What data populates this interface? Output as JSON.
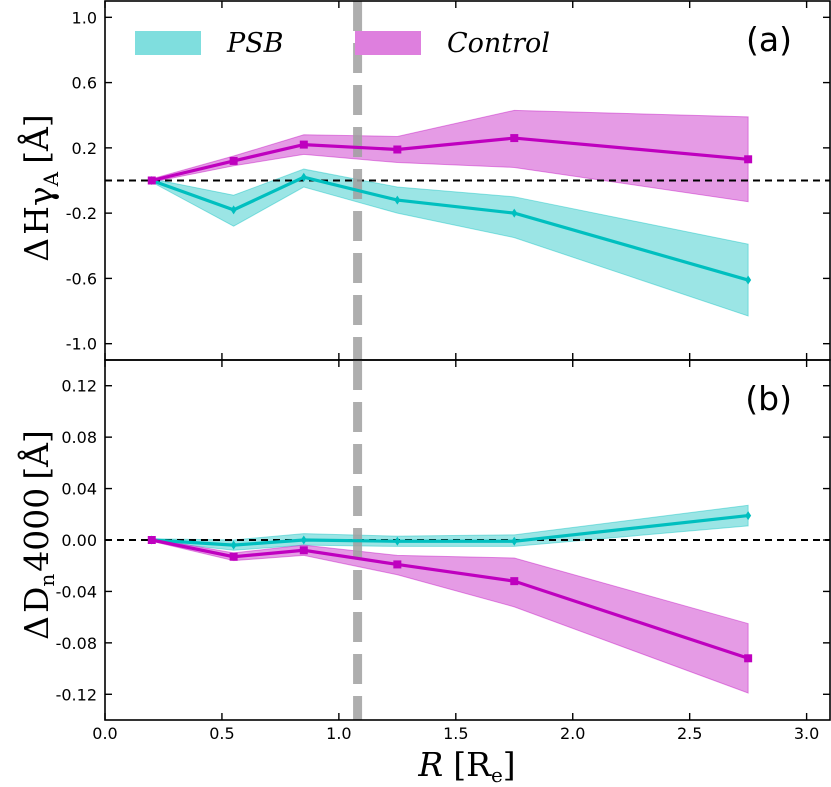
{
  "chart_data": [
    {
      "type": "line",
      "panel": "(a)",
      "ylabel": "ΔHγA [Å]",
      "ylabel_parts": {
        "delta": "Δ",
        "main": "H",
        "greek": "γ",
        "sub": "A",
        "unit": "[Å]"
      },
      "xlim": [
        0.0,
        3.1
      ],
      "ylim": [
        -1.1,
        1.1
      ],
      "yticks": [
        1.0,
        0.6,
        0.2,
        -0.2,
        -0.6,
        -1.0
      ],
      "ytick_labels": [
        "1.0",
        "0.6",
        "0.2",
        "-0.2",
        "-0.6",
        "-1.0"
      ],
      "reference_line_y": 0.0,
      "series": [
        {
          "name": "PSB",
          "color": "#00BFBF",
          "fill_color": "#7FDEDE",
          "marker": "diamond",
          "x": [
            0.2,
            0.55,
            0.85,
            1.25,
            1.75,
            2.75
          ],
          "values": [
            0.0,
            -0.18,
            0.02,
            -0.12,
            -0.2,
            -0.61
          ],
          "lower": [
            -0.01,
            -0.28,
            -0.04,
            -0.2,
            -0.35,
            -0.83
          ],
          "upper": [
            0.01,
            -0.09,
            0.07,
            -0.04,
            -0.1,
            -0.39
          ]
        },
        {
          "name": "Control",
          "color": "#BF00BF",
          "fill_color": "#DE7FDE",
          "marker": "square",
          "x": [
            0.2,
            0.55,
            0.85,
            1.25,
            1.75,
            2.75
          ],
          "values": [
            0.0,
            0.12,
            0.22,
            0.19,
            0.26,
            0.13
          ],
          "lower": [
            -0.01,
            0.09,
            0.16,
            0.11,
            0.08,
            -0.13
          ],
          "upper": [
            0.01,
            0.15,
            0.28,
            0.27,
            0.43,
            0.39
          ]
        }
      ]
    },
    {
      "type": "line",
      "panel": "(b)",
      "ylabel": "ΔDn4000 [Å]",
      "ylabel_parts": {
        "delta": "Δ",
        "main": "D",
        "sub": "n",
        "main2": "4000",
        "unit": "[Å]"
      },
      "xlim": [
        0.0,
        3.1
      ],
      "ylim": [
        -0.14,
        0.14
      ],
      "yticks": [
        0.12,
        0.08,
        0.04,
        0.0,
        -0.04,
        -0.08,
        -0.12
      ],
      "ytick_labels": [
        "0.12",
        "0.08",
        "0.04",
        "0.00",
        "-0.04",
        "-0.08",
        "-0.12"
      ],
      "reference_line_y": 0.0,
      "series": [
        {
          "name": "PSB",
          "color": "#00BFBF",
          "fill_color": "#7FDEDE",
          "marker": "diamond",
          "x": [
            0.2,
            0.55,
            0.85,
            1.25,
            1.75,
            2.75
          ],
          "values": [
            0.0,
            -0.004,
            0.0,
            -0.001,
            -0.001,
            0.019
          ],
          "lower": [
            -0.001,
            -0.008,
            -0.004,
            -0.005,
            -0.005,
            0.011
          ],
          "upper": [
            0.001,
            0.0,
            0.005,
            0.003,
            0.004,
            0.027
          ]
        },
        {
          "name": "Control",
          "color": "#BF00BF",
          "fill_color": "#DE7FDE",
          "marker": "square",
          "x": [
            0.2,
            0.55,
            0.85,
            1.25,
            1.75,
            2.75
          ],
          "values": [
            0.0,
            -0.013,
            -0.008,
            -0.019,
            -0.032,
            -0.092
          ],
          "lower": [
            -0.001,
            -0.016,
            -0.012,
            -0.027,
            -0.052,
            -0.119
          ],
          "upper": [
            0.001,
            -0.01,
            -0.004,
            -0.012,
            -0.014,
            -0.065
          ]
        }
      ]
    }
  ],
  "shared": {
    "xticks": [
      0.0,
      0.5,
      1.0,
      1.5,
      2.0,
      2.5,
      3.0
    ],
    "xtick_labels": [
      "0.0",
      "0.5",
      "1.0",
      "1.5",
      "2.0",
      "2.5",
      "3.0"
    ],
    "xlabel": "R [Re]",
    "xlabel_parts": {
      "var": "R",
      "unit_open": "[R",
      "unit_sub": "e",
      "unit_close": "]"
    },
    "vertical_line_x": 1.08,
    "vertical_line_color": "#A0A0A0",
    "legend": [
      {
        "label": "PSB",
        "color": "#7FDEDE"
      },
      {
        "label": "Control",
        "color": "#DE7FDE"
      }
    ],
    "legend_position": "top-left"
  }
}
